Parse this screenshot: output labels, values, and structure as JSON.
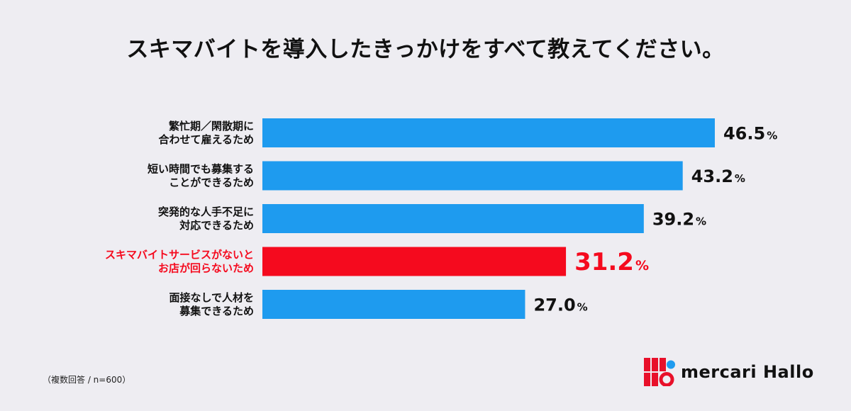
{
  "title": "スキマバイトを導入したきっかけをすべて教えてください。",
  "footnote": "（複数回答 / n=600）",
  "brand": {
    "name": "mercari Hallo"
  },
  "colors": {
    "bar": "#1e9bef",
    "highlight": "#f50a1e",
    "text": "#111111",
    "background": "#eeedf2"
  },
  "chart_data": {
    "type": "bar",
    "orientation": "horizontal",
    "unit": "%",
    "categories": [
      [
        "繁忙期／閑散期に",
        "合わせて雇えるため"
      ],
      [
        "短い時間でも募集する",
        "ことができるため"
      ],
      [
        "突発的な人手不足に",
        "対応できるため"
      ],
      [
        "スキマバイトサービスがないと",
        "お店が回らないため"
      ],
      [
        "面接なしで人材を",
        "募集できるため"
      ]
    ],
    "values": [
      46.5,
      43.2,
      39.2,
      31.2,
      27.0
    ],
    "value_labels": [
      "46.5",
      "43.2",
      "39.2",
      "31.2",
      "27.0"
    ],
    "highlight_index": 3,
    "xlim": [
      0,
      50
    ],
    "grid": false,
    "legend": "none"
  }
}
